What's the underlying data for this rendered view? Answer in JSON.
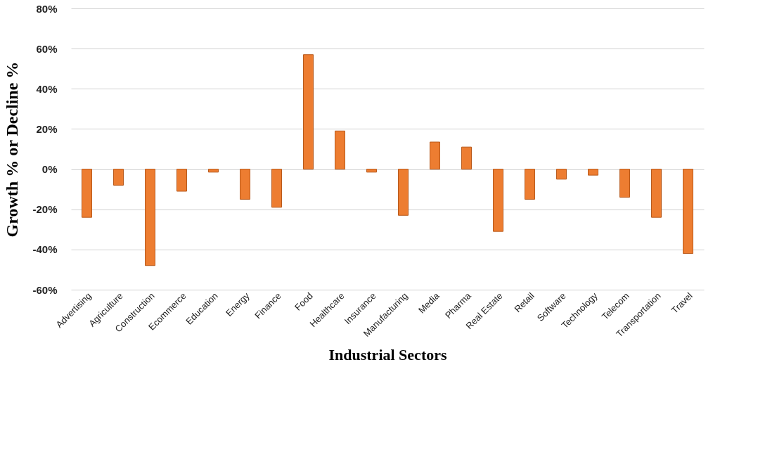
{
  "chart_data": {
    "type": "bar",
    "xlabel": "Industrial Sectors",
    "ylabel": "Growth % or Decline %",
    "categories": [
      "Advertising",
      "Agriculture",
      "Construction",
      "Ecommerce",
      "Education",
      "Energy",
      "Finance",
      "Food",
      "Healthcare",
      "Insurance",
      "Manufacturing",
      "Media",
      "Pharma",
      "Real Estate",
      "Retail",
      "Software",
      "Technology",
      "Telecom",
      "Transportation",
      "Travel"
    ],
    "values": [
      -24,
      -8,
      -48,
      -11,
      -1.5,
      -15,
      -19,
      57,
      19,
      -1.5,
      -23,
      13.5,
      11,
      -31,
      -15,
      -5,
      -3,
      -14,
      -24,
      -42
    ],
    "color": "#ed7d31",
    "ylim": [
      -60,
      80
    ],
    "yticks": [
      {
        "value": -60,
        "label": "-60%"
      },
      {
        "value": -40,
        "label": "-40%"
      },
      {
        "value": -20,
        "label": "-20%"
      },
      {
        "value": 0,
        "label": "0%"
      },
      {
        "value": 20,
        "label": "20%"
      },
      {
        "value": 40,
        "label": "40%"
      },
      {
        "value": 60,
        "label": "60%"
      },
      {
        "value": 80,
        "label": "80%"
      }
    ],
    "grid": "y"
  }
}
